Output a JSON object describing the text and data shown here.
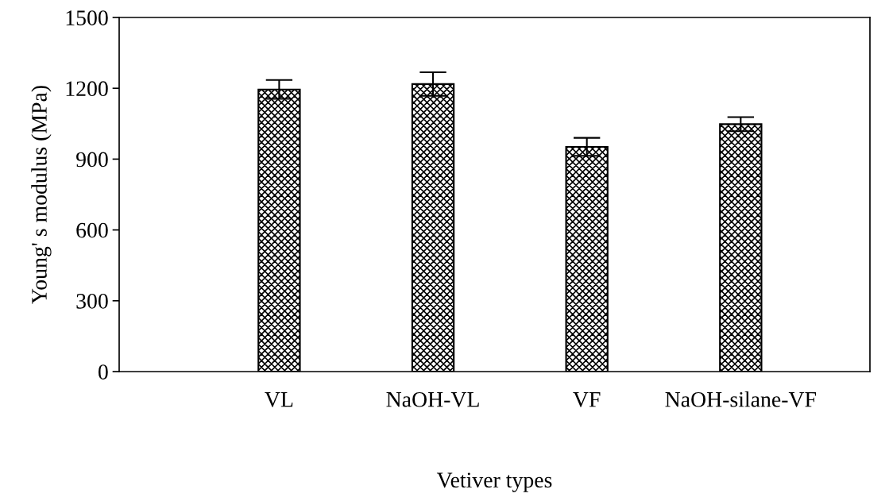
{
  "chart_data": {
    "type": "bar",
    "xlabel": "Vetiver types",
    "ylabel": "Young' s modulus (MPa)",
    "categories": [
      "VL",
      "NaOH-VL",
      "VF",
      "NaOH-silane-VF"
    ],
    "values": [
      1195,
      1218,
      952,
      1048
    ],
    "errors": [
      40,
      50,
      38,
      30
    ],
    "color": "#000000",
    "ylim": [
      0,
      1500
    ],
    "yticks": [
      0,
      300,
      600,
      900,
      1200,
      1500
    ],
    "grid": false
  }
}
